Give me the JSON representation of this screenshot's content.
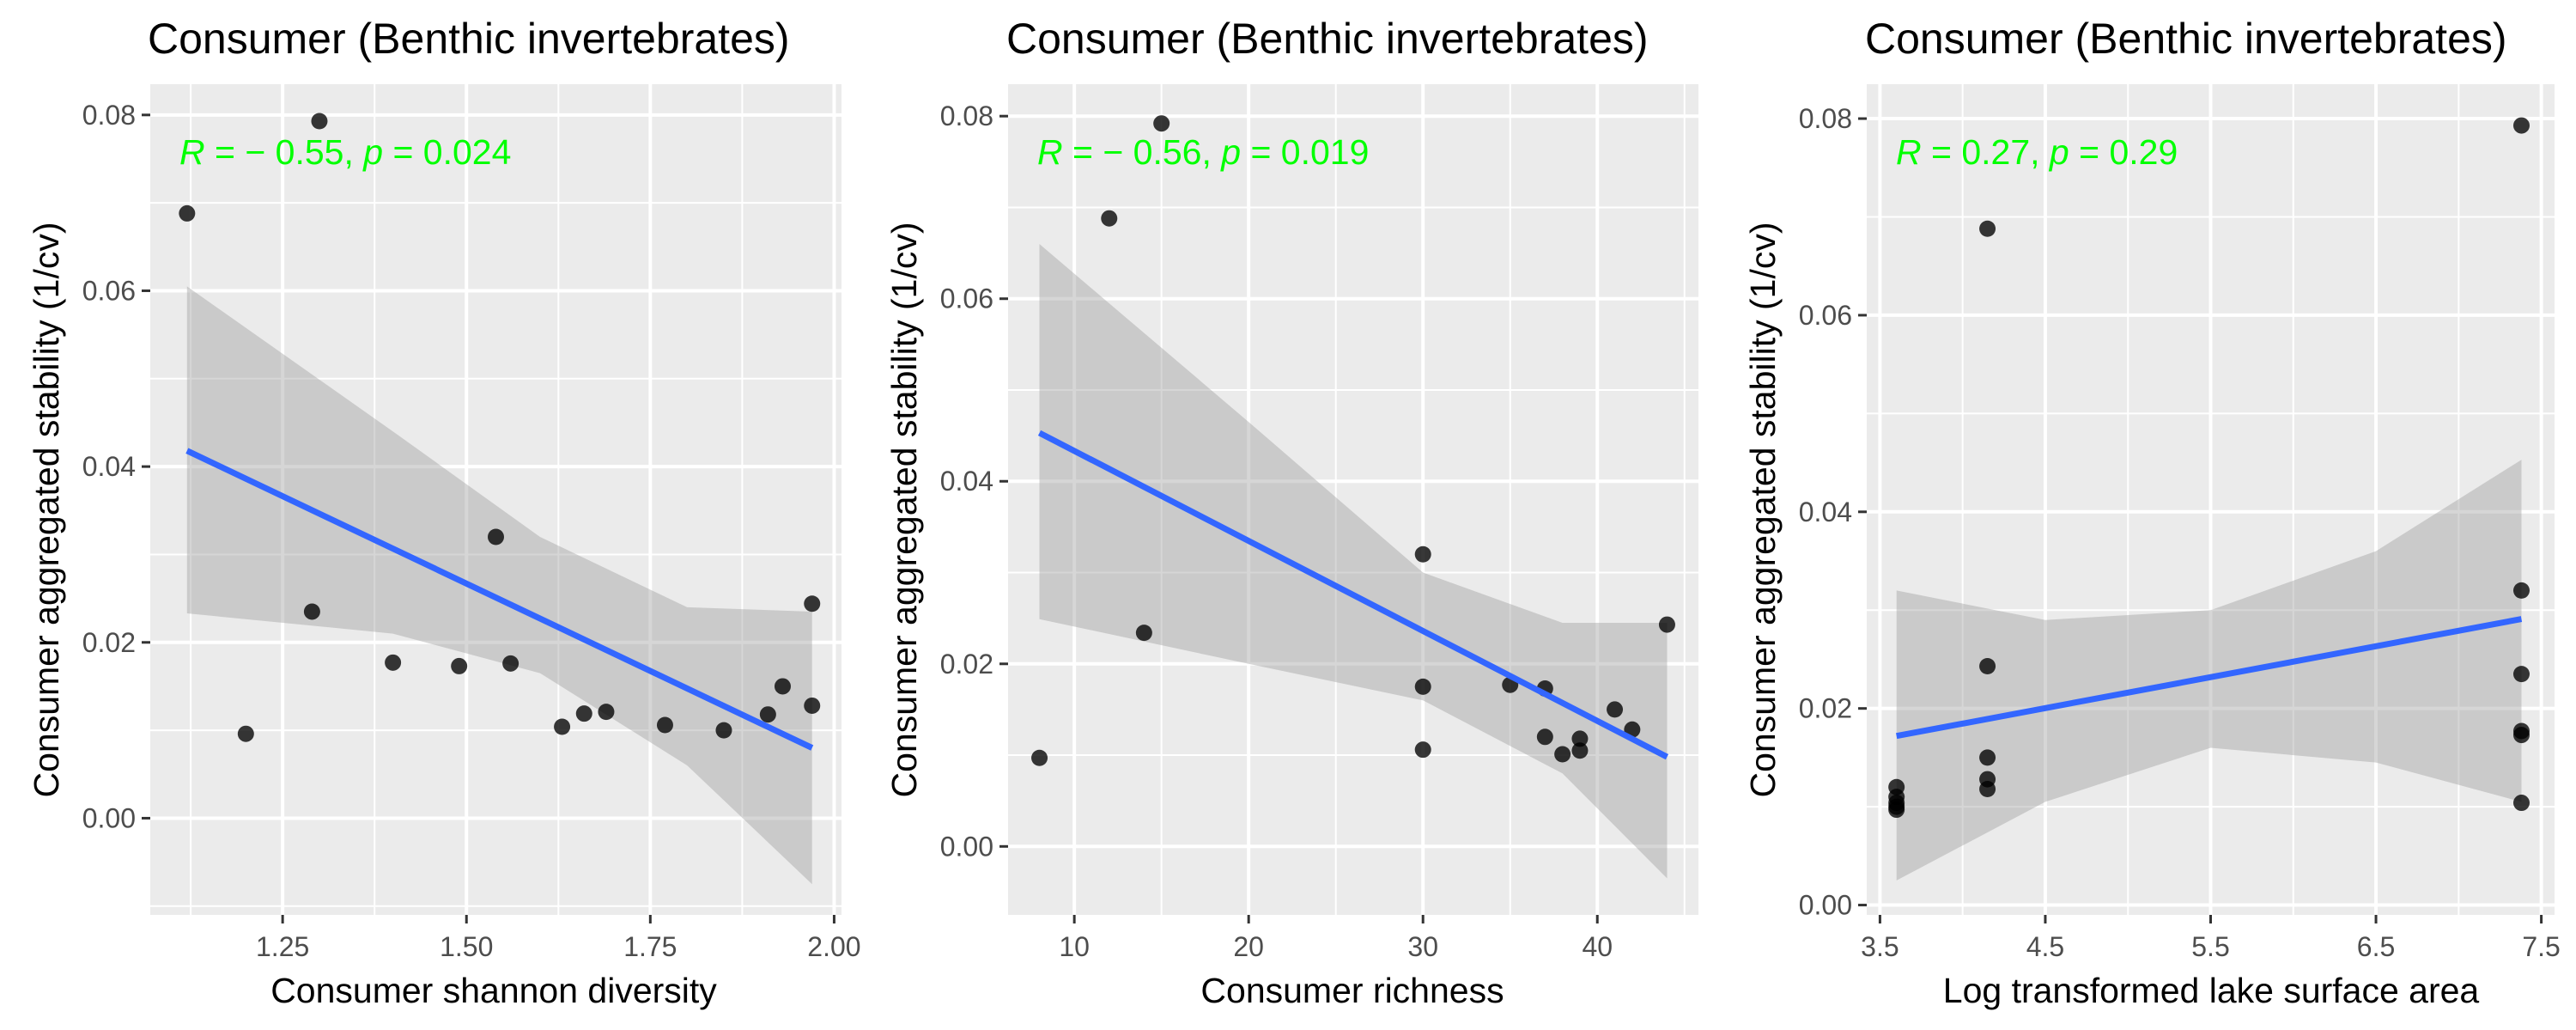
{
  "chart_data": [
    {
      "type": "scatter",
      "title": "Consumer (Benthic invertebrates)",
      "xlabel": "Consumer shannon diversity",
      "ylabel": "Consumer aggregated stability (1/cv)",
      "annotation": {
        "r_label": "R",
        "r_value": "− 0.55",
        "p_label": "p",
        "p_value": "0.024"
      },
      "xlim": [
        1.07,
        2.01
      ],
      "ylim": [
        -0.011,
        0.0835
      ],
      "xticks": [
        "1.25",
        "1.50",
        "1.75",
        "2.00"
      ],
      "xtick_values": [
        1.25,
        1.5,
        1.75,
        2.0
      ],
      "yticks": [
        "0.00",
        "0.02",
        "0.04",
        "0.06",
        "0.08"
      ],
      "ytick_values": [
        0.0,
        0.02,
        0.04,
        0.06,
        0.08
      ],
      "grid": true,
      "points": [
        [
          1.12,
          0.0688
        ],
        [
          1.2,
          0.0096
        ],
        [
          1.29,
          0.0235
        ],
        [
          1.3,
          0.0793
        ],
        [
          1.4,
          0.0177
        ],
        [
          1.49,
          0.0173
        ],
        [
          1.54,
          0.032
        ],
        [
          1.56,
          0.0176
        ],
        [
          1.63,
          0.0104
        ],
        [
          1.66,
          0.0119
        ],
        [
          1.69,
          0.0121
        ],
        [
          1.77,
          0.0106
        ],
        [
          1.85,
          0.01
        ],
        [
          1.91,
          0.0118
        ],
        [
          1.93,
          0.015
        ],
        [
          1.97,
          0.0128
        ],
        [
          1.97,
          0.0244
        ]
      ],
      "fit": {
        "x": [
          1.12,
          1.97
        ],
        "y": [
          0.0418,
          0.008
        ]
      },
      "band": {
        "x": [
          1.12,
          1.4,
          1.6,
          1.8,
          1.97
        ],
        "lower": [
          0.0233,
          0.021,
          0.0165,
          0.006,
          -0.0075
        ],
        "upper": [
          0.0605,
          0.044,
          0.032,
          0.024,
          0.0235
        ]
      }
    },
    {
      "type": "scatter",
      "title": "Consumer (Benthic invertebrates)",
      "xlabel": "Consumer richness",
      "ylabel": "Consumer aggregated stability (1/cv)",
      "annotation": {
        "r_label": "R",
        "r_value": "− 0.56",
        "p_label": "p",
        "p_value": "0.019"
      },
      "xlim": [
        6.2,
        45.8
      ],
      "ylim": [
        -0.0075,
        0.0835
      ],
      "xticks": [
        "10",
        "20",
        "30",
        "40"
      ],
      "xtick_values": [
        10,
        20,
        30,
        40
      ],
      "yticks": [
        "0.00",
        "0.02",
        "0.04",
        "0.06",
        "0.08"
      ],
      "ytick_values": [
        0.0,
        0.02,
        0.04,
        0.06,
        0.08
      ],
      "grid": true,
      "points": [
        [
          8,
          0.0097
        ],
        [
          12,
          0.0688
        ],
        [
          14,
          0.0234
        ],
        [
          15,
          0.0792
        ],
        [
          30,
          0.032
        ],
        [
          30,
          0.0175
        ],
        [
          30,
          0.0106
        ],
        [
          35,
          0.0177
        ],
        [
          37,
          0.0173
        ],
        [
          37,
          0.012
        ],
        [
          38,
          0.0101
        ],
        [
          39,
          0.0118
        ],
        [
          39,
          0.0105
        ],
        [
          41,
          0.015
        ],
        [
          42,
          0.0128
        ],
        [
          44,
          0.0243
        ]
      ],
      "fit": {
        "x": [
          8,
          44
        ],
        "y": [
          0.0453,
          0.0098
        ]
      },
      "band": {
        "x": [
          8,
          20,
          30,
          38,
          44
        ],
        "lower": [
          0.0249,
          0.02,
          0.016,
          0.008,
          -0.0035
        ],
        "upper": [
          0.066,
          0.0465,
          0.03,
          0.0245,
          0.0245
        ]
      }
    },
    {
      "type": "scatter",
      "title": "Consumer (Benthic invertebrates)",
      "xlabel": "Log transformed lake surface area",
      "ylabel": "Consumer aggregated stability (1/cv)",
      "annotation": {
        "r_label": "R",
        "r_value": "0.27",
        "p_label": "p",
        "p_value": "0.29"
      },
      "xlim": [
        3.42,
        7.58
      ],
      "ylim": [
        -0.001,
        0.0835
      ],
      "xticks": [
        "3.5",
        "4.5",
        "5.5",
        "6.5",
        "7.5"
      ],
      "xtick_values": [
        3.5,
        4.5,
        5.5,
        6.5,
        7.5
      ],
      "yticks": [
        "0.00",
        "0.02",
        "0.04",
        "0.06",
        "0.08"
      ],
      "ytick_values": [
        0.0,
        0.02,
        0.04,
        0.06,
        0.08
      ],
      "grid": true,
      "points": [
        [
          3.6,
          0.012
        ],
        [
          3.6,
          0.011
        ],
        [
          3.6,
          0.0104
        ],
        [
          3.6,
          0.01
        ],
        [
          3.6,
          0.0097
        ],
        [
          4.15,
          0.0688
        ],
        [
          4.15,
          0.0243
        ],
        [
          4.15,
          0.015
        ],
        [
          4.15,
          0.0128
        ],
        [
          4.15,
          0.0118
        ],
        [
          7.38,
          0.0793
        ],
        [
          7.38,
          0.032
        ],
        [
          7.38,
          0.0235
        ],
        [
          7.38,
          0.0177
        ],
        [
          7.38,
          0.0173
        ],
        [
          7.38,
          0.0104
        ]
      ],
      "fit": {
        "x": [
          3.6,
          7.38
        ],
        "y": [
          0.0172,
          0.0291
        ]
      },
      "band": {
        "x": [
          3.6,
          4.5,
          5.5,
          6.5,
          7.38
        ],
        "lower": [
          0.0025,
          0.0105,
          0.016,
          0.0145,
          0.0105
        ],
        "upper": [
          0.032,
          0.029,
          0.03,
          0.036,
          0.0453
        ]
      }
    }
  ]
}
